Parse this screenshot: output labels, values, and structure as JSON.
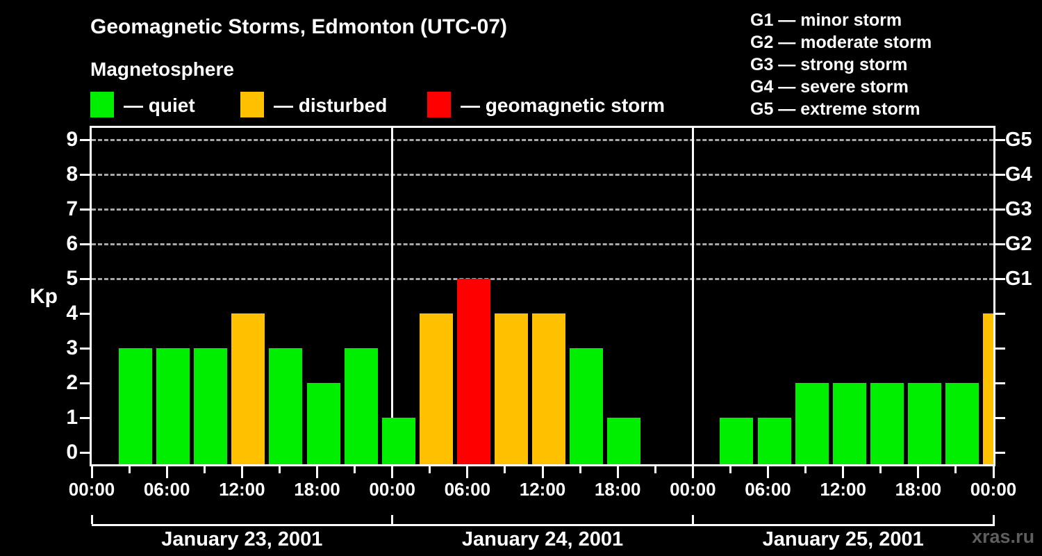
{
  "header": {
    "title": "Geomagnetic Storms, Edmonton (UTC-07)",
    "subtitle": "Magnetosphere"
  },
  "legend": {
    "items": [
      {
        "key": "quiet",
        "label": "— quiet",
        "color": "#00EE00"
      },
      {
        "key": "disturbed",
        "label": "— disturbed",
        "color": "#FFC000"
      },
      {
        "key": "storm",
        "label": "— geomagnetic storm",
        "color": "#FF0000"
      }
    ]
  },
  "g_scale_legend": {
    "items": [
      {
        "label": "G1 — minor storm"
      },
      {
        "label": "G2 — moderate storm"
      },
      {
        "label": "G3 — strong storm"
      },
      {
        "label": "G4 — severe storm"
      },
      {
        "label": "G5 — extreme storm"
      }
    ]
  },
  "chart_data": {
    "type": "bar",
    "title": "Geomagnetic Storms, Edmonton (UTC-07)",
    "ylabel": "Kp",
    "ylim": [
      0,
      9
    ],
    "yticks": [
      0,
      1,
      2,
      3,
      4,
      5,
      6,
      7,
      8,
      9
    ],
    "grid_levels_kp": [
      5,
      6,
      7,
      8,
      9
    ],
    "grid_style": "dashed",
    "legend_position": "top",
    "hours_per_slot": 3,
    "time_labels": [
      "00:00",
      "06:00",
      "12:00",
      "18:00",
      "00:00",
      "06:00",
      "12:00",
      "18:00",
      "00:00",
      "06:00",
      "12:00",
      "18:00",
      "00:00"
    ],
    "right_axis": [
      {
        "label": "G5",
        "kp": 9
      },
      {
        "label": "G4",
        "kp": 8
      },
      {
        "label": "G3",
        "kp": 7
      },
      {
        "label": "G2",
        "kp": 6
      },
      {
        "label": "G1",
        "kp": 5
      }
    ],
    "days": [
      {
        "date": "January 23, 2001",
        "kp_values": [
          3,
          3,
          3,
          4,
          3,
          2,
          3,
          1
        ]
      },
      {
        "date": "January 24, 2001",
        "kp_values": [
          4,
          5,
          4,
          4,
          3,
          1,
          0,
          0
        ]
      },
      {
        "date": "January 25, 2001",
        "kp_values": [
          1,
          1,
          2,
          2,
          2,
          2,
          2,
          4
        ]
      }
    ],
    "colors": {
      "quiet": "#00EE00",
      "disturbed": "#FFC000",
      "storm": "#FF0000"
    },
    "color_rules": {
      "quiet_kp_max": 3,
      "disturbed_kp": 4,
      "storm_kp_min": 5
    }
  },
  "watermark": "xras.ru"
}
